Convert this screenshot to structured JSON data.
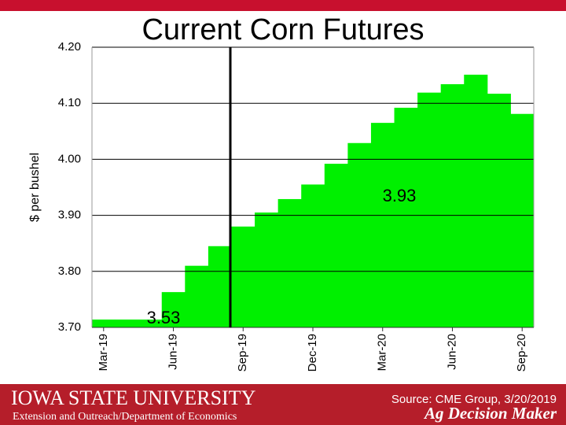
{
  "chart_data": {
    "type": "step-area",
    "title": "Current Corn Futures",
    "y_label": "$ per bushel",
    "categories": [
      "Mar-19",
      null,
      null,
      "Jun-19",
      null,
      null,
      "Sep-19",
      null,
      null,
      "Dec-19",
      null,
      null,
      "Mar-20",
      null,
      null,
      "Jun-20",
      null,
      null,
      "Sep-20"
    ],
    "values": [
      3.714,
      3.714,
      3.714,
      3.763,
      3.81,
      3.845,
      3.88,
      3.905,
      3.929,
      3.955,
      3.992,
      4.029,
      4.065,
      4.092,
      4.119,
      4.134,
      4.151,
      4.117,
      4.081
    ],
    "color": "#00f000",
    "ylim": [
      3.7,
      4.2
    ],
    "yticks": [
      {
        "value": 3.7,
        "label": "3.70"
      },
      {
        "value": 3.8,
        "label": "3.80"
      },
      {
        "value": 3.9,
        "label": "3.90"
      },
      {
        "value": 4.0,
        "label": "4.00"
      },
      {
        "value": 4.1,
        "label": "4.10"
      },
      {
        "value": 4.2,
        "label": "4.20"
      }
    ],
    "grid": true,
    "annotations": [
      "3.93",
      "3.53"
    ]
  },
  "footer": {
    "university": "IOWA STATE UNIVERSITY",
    "department": "Extension and Outreach/Department of Economics",
    "source": "Source: CME Group, 3/20/2019",
    "brand": "Ag Decision Maker"
  }
}
